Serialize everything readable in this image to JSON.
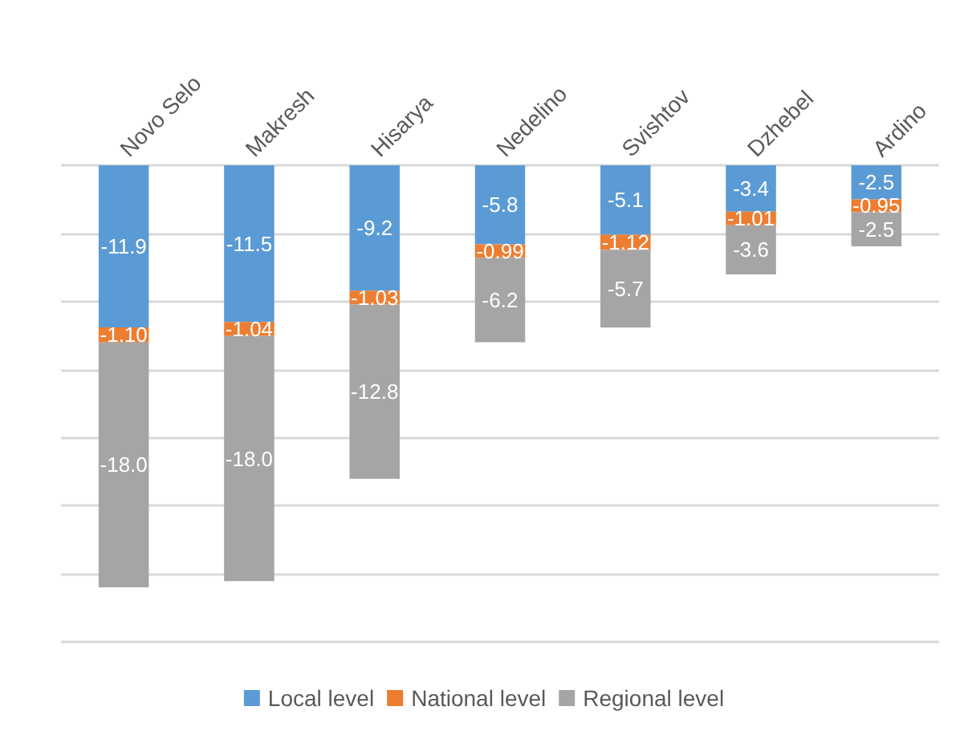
{
  "chart_data": {
    "type": "bar",
    "stacked": true,
    "categories": [
      "Novo Selo",
      "Makresh",
      "Hisarya",
      "Nedelino",
      "Svishtov",
      "Dzhebel",
      "Ardino"
    ],
    "series": [
      {
        "name": "Local level",
        "color": "#5b9bd5",
        "values": [
          -11.9,
          -11.5,
          -9.2,
          -5.8,
          -5.1,
          -3.4,
          -2.5
        ],
        "value_labels": [
          "-11.9",
          "-11.5",
          "-9.2",
          "-5.8",
          "-5.1",
          "-3.4",
          "-2.5"
        ]
      },
      {
        "name": "National level",
        "color": "#ed7d31",
        "values": [
          -1.1,
          -1.04,
          -1.03,
          -0.99,
          -1.12,
          -1.01,
          -0.95
        ],
        "value_labels": [
          "-1.10",
          "-1.04",
          "-1.03",
          "-0.99",
          "-1.12",
          "-1.01",
          "-0.95"
        ]
      },
      {
        "name": "Regional level",
        "color": "#a5a5a5",
        "values": [
          -18.0,
          -18.0,
          -12.8,
          -6.2,
          -5.7,
          -3.6,
          -2.5
        ],
        "value_labels": [
          "-18.0",
          "-18.0",
          "-12.8",
          "-6.2",
          "-5.7",
          "-3.6",
          "-2.5"
        ]
      }
    ],
    "ylim": [
      -35,
      0
    ],
    "yticks": [
      {
        "value": -35,
        "label": null
      },
      {
        "value": -30,
        "label": null
      },
      {
        "value": -25,
        "label": null
      },
      {
        "value": -20,
        "label": null
      },
      {
        "value": -15,
        "label": null
      },
      {
        "value": -10,
        "label": null
      },
      {
        "value": -5,
        "label": null
      },
      {
        "value": 0,
        "label": null
      }
    ],
    "tick_labels": "x",
    "grid": "y",
    "legend": "bottom"
  }
}
